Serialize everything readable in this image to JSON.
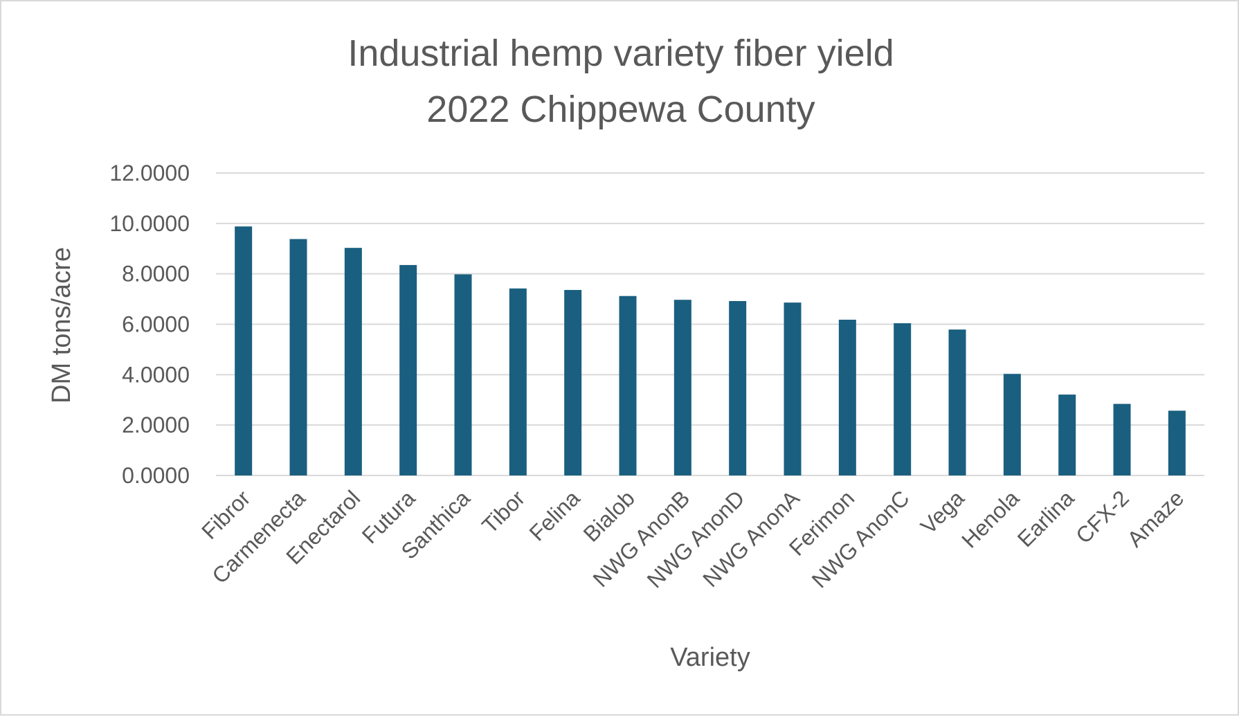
{
  "chart_data": {
    "type": "bar",
    "title": [
      "Industrial hemp variety fiber yield",
      "2022 Chippewa County"
    ],
    "xlabel": "Variety",
    "ylabel": "DM tons/acre",
    "ylim": [
      0,
      12
    ],
    "yticks": [
      "0.0000",
      "2.0000",
      "4.0000",
      "6.0000",
      "8.0000",
      "10.0000",
      "12.0000"
    ],
    "categories": [
      "Fibror",
      "Carmenecta",
      "Enectarol",
      "Futura",
      "Santhica",
      "Tibor",
      "Felina",
      "Bialob",
      "NWG AnonB",
      "NWG AnonD",
      "NWG AnonA",
      "Ferimon",
      "NWG AnonC",
      "Vega",
      "Henola",
      "Earlina",
      "CFX-2",
      "Amaze"
    ],
    "values": [
      9.88,
      9.38,
      9.03,
      8.35,
      7.98,
      7.42,
      7.36,
      7.12,
      6.97,
      6.92,
      6.86,
      6.18,
      6.04,
      5.79,
      4.03,
      3.21,
      2.84,
      2.57
    ],
    "grid": true,
    "legend": "none",
    "bar_color": "#1a5f7f"
  }
}
